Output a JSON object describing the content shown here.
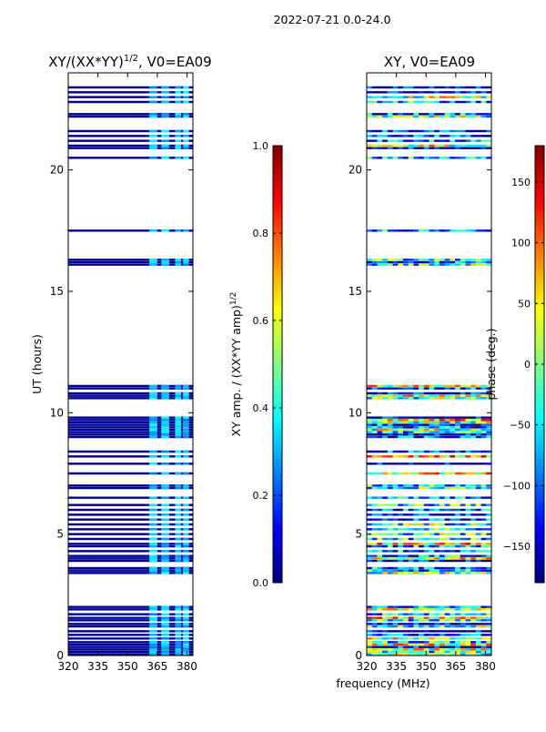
{
  "suptitle": "2022-07-21 0.0-24.0",
  "colors": {
    "frame": "#000000",
    "background": "#ffffff",
    "jet": [
      "#000080",
      "#0000ff",
      "#0080ff",
      "#00ffff",
      "#80ff80",
      "#ffff00",
      "#ff8000",
      "#ff0000",
      "#800000"
    ]
  },
  "chart_data": [
    {
      "id": "amp",
      "type": "heatmap",
      "title": "XY/(XX*YY)",
      "title_superscript": "1/2",
      "title_suffix": ", V0=EA09",
      "xlabel": "",
      "ylabel": "UT (hours)",
      "xlim": [
        320,
        383
      ],
      "ylim": [
        0,
        24
      ],
      "xticks": [
        320,
        335,
        350,
        365,
        380
      ],
      "yticks": [
        0,
        5,
        10,
        15,
        20
      ],
      "value_range": [
        0,
        1
      ],
      "colorbar": {
        "label": "XY amp. / (XX*YY amp)",
        "label_superscript": "1/2",
        "ticks": [
          0.0,
          0.2,
          0.4,
          0.6,
          0.8,
          1.0
        ],
        "tick_labels": [
          "0.0",
          "0.2",
          "0.4",
          "0.6",
          "0.8",
          "1.0"
        ]
      },
      "base_value": 0.02,
      "noisy_frequency_ranges": [
        [
          361,
          365
        ],
        [
          367,
          371
        ],
        [
          374,
          377
        ],
        [
          378,
          381
        ]
      ],
      "data_rows_ut": [
        0.05,
        0.15,
        0.25,
        0.35,
        0.45,
        0.55,
        0.7,
        0.85,
        1.0,
        1.2,
        1.3,
        1.45,
        1.55,
        1.7,
        1.9,
        2.0,
        3.4,
        3.5,
        3.6,
        3.9,
        4.0,
        4.1,
        4.3,
        4.5,
        4.6,
        4.8,
        5.0,
        5.2,
        5.4,
        5.6,
        5.8,
        6.0,
        6.2,
        6.5,
        6.9,
        7.0,
        7.5,
        7.9,
        8.2,
        8.4,
        9.0,
        9.1,
        9.2,
        9.3,
        9.4,
        9.5,
        9.6,
        9.7,
        9.8,
        10.6,
        10.7,
        10.8,
        11.0,
        11.1,
        16.1,
        16.2,
        16.3,
        17.5,
        20.5,
        20.9,
        21.0,
        21.2,
        21.4,
        21.6,
        22.2,
        22.3,
        22.8,
        23.0,
        23.2,
        23.4
      ]
    },
    {
      "id": "phase",
      "type": "heatmap",
      "title": "XY, V0=EA09",
      "xlabel": "frequency (MHz)",
      "ylabel": "",
      "xlim": [
        320,
        383
      ],
      "ylim": [
        0,
        24
      ],
      "xticks": [
        320,
        335,
        350,
        365,
        380
      ],
      "yticks": [
        0,
        5,
        10,
        15,
        20
      ],
      "value_range": [
        -180,
        180
      ],
      "colorbar": {
        "label": "phase (deg.)",
        "ticks": [
          -150,
          -100,
          -50,
          0,
          50,
          100,
          150
        ],
        "tick_labels": [
          "−150",
          "−100",
          "−50",
          "0",
          "50",
          "100",
          "150"
        ]
      },
      "data_rows_ut": [
        0.05,
        0.15,
        0.25,
        0.35,
        0.45,
        0.55,
        0.7,
        0.85,
        1.0,
        1.2,
        1.3,
        1.45,
        1.55,
        1.7,
        1.9,
        2.0,
        3.4,
        3.5,
        3.6,
        3.9,
        4.0,
        4.1,
        4.3,
        4.5,
        4.6,
        4.8,
        5.0,
        5.2,
        5.4,
        5.6,
        5.8,
        6.0,
        6.2,
        6.5,
        6.9,
        7.0,
        7.5,
        7.9,
        8.2,
        8.4,
        9.0,
        9.1,
        9.2,
        9.3,
        9.4,
        9.5,
        9.6,
        9.7,
        9.8,
        10.6,
        10.7,
        10.8,
        11.0,
        11.1,
        16.1,
        16.2,
        16.3,
        17.5,
        20.5,
        20.9,
        21.0,
        21.2,
        21.4,
        21.6,
        22.2,
        22.3,
        22.8,
        23.0,
        23.2,
        23.4
      ]
    }
  ]
}
